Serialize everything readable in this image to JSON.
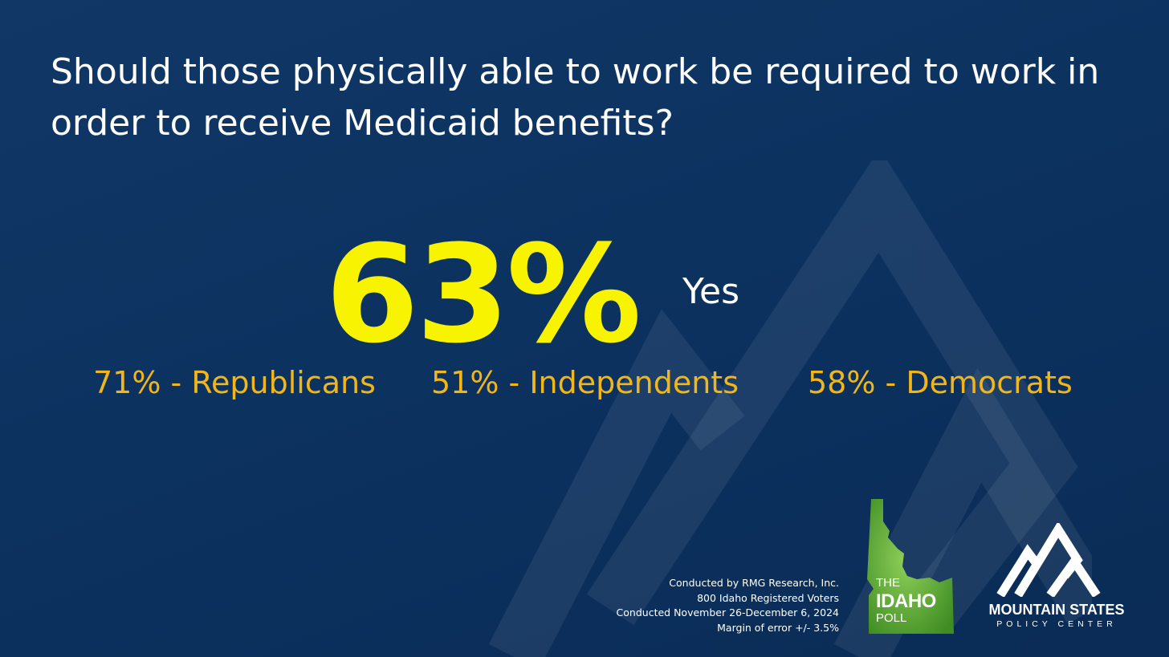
{
  "question": "Should those physically able to work be required to work in order to receive Medicaid benefits?",
  "headline": {
    "value": "63%",
    "label": "Yes"
  },
  "breakdown": [
    {
      "text": "71% - Republicans"
    },
    {
      "text": "51% - Independents"
    },
    {
      "text": "58% - Democrats"
    }
  ],
  "footnote": {
    "line1": "Conducted by RMG Research, Inc.",
    "line2": "800 Idaho Registered Voters",
    "line3": "Conducted November 26-December 6, 2024",
    "line4": "Margin of error +/- 3.5%"
  },
  "idaho_poll_logo": {
    "the": "THE",
    "idaho": "IDAHO",
    "poll": "POLL"
  },
  "mountain_states_logo": {
    "name": "MOUNTAIN STATES",
    "sub": "POLICY CENTER"
  },
  "colors": {
    "background": "#0c3260",
    "headline": "#f7f301",
    "breakdown": "#f2b619",
    "idaho_green": "#4c9a2a"
  }
}
